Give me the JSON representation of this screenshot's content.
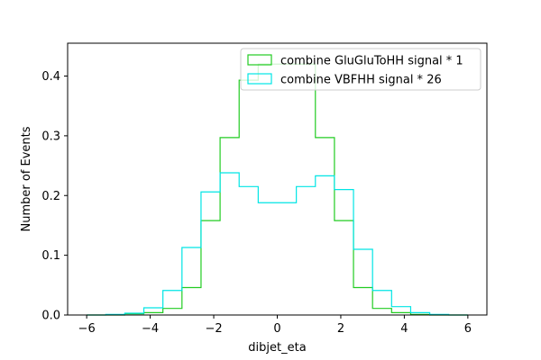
{
  "chart_data": {
    "type": "step-histogram",
    "xlabel": "dibjet_eta",
    "ylabel": "Number of Events",
    "xlim": [
      -6.6,
      6.6
    ],
    "ylim": [
      0,
      0.455
    ],
    "x_ticks": [
      -6,
      -4,
      -2,
      0,
      2,
      4,
      6
    ],
    "y_ticks": [
      0.0,
      0.1,
      0.2,
      0.3,
      0.4
    ],
    "y_tick_labels": [
      "0.0",
      "0.1",
      "0.2",
      "0.3",
      "0.4"
    ],
    "grid": false,
    "legend_position": "top-right",
    "bin_edges": [
      -6.0,
      -5.4,
      -4.8,
      -4.2,
      -3.6,
      -3.0,
      -2.4,
      -1.8,
      -1.2,
      -0.6,
      0.0,
      0.6,
      1.2,
      1.8,
      2.4,
      3.0,
      3.6,
      4.2,
      4.8,
      5.4,
      6.0
    ],
    "series": [
      {
        "name": "combine GluGluToHH signal * 1",
        "color": "#22cc22",
        "values": [
          0.0,
          0.0,
          0.002,
          0.004,
          0.011,
          0.046,
          0.158,
          0.297,
          0.393,
          0.42,
          0.42,
          0.42,
          0.297,
          0.158,
          0.046,
          0.011,
          0.004,
          0.001,
          0.0,
          0.0
        ]
      },
      {
        "name": "combine VBFHH signal * 26",
        "color": "#00e5e5",
        "values": [
          0.0,
          0.001,
          0.003,
          0.012,
          0.041,
          0.113,
          0.206,
          0.238,
          0.215,
          0.188,
          0.188,
          0.215,
          0.233,
          0.21,
          0.11,
          0.041,
          0.014,
          0.004,
          0.001,
          0.0
        ]
      }
    ]
  }
}
